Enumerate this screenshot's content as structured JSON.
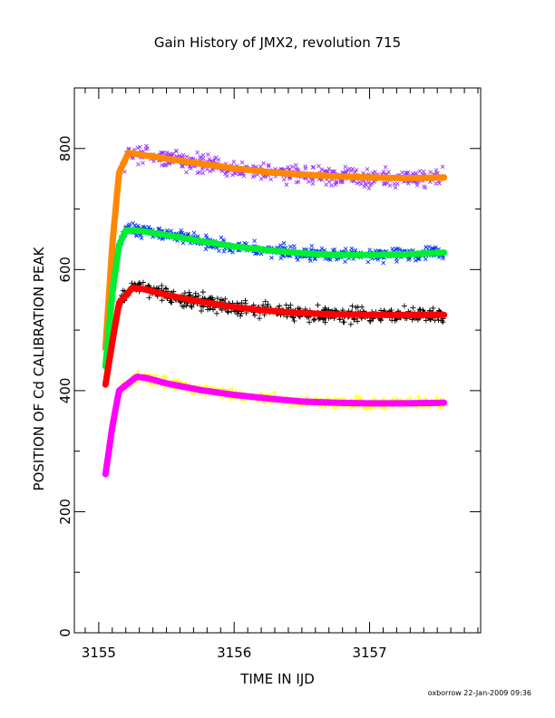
{
  "chart_data": {
    "type": "scatter",
    "title": "Gain History of JMX2, revolution 715",
    "xlabel": "TIME IN IJD",
    "ylabel": "POSITION OF Cd CALIBRATION PEAK",
    "xlim": [
      3154.82,
      3157.82
    ],
    "ylim": [
      0,
      900
    ],
    "x_ticks": [
      3155,
      3156,
      3157
    ],
    "x_tick_labels": [
      "3155",
      "3156",
      "3157"
    ],
    "y_ticks": [
      0,
      200,
      400,
      600,
      800
    ],
    "y_tick_labels": [
      "0",
      "200",
      "400",
      "600",
      "800"
    ],
    "grid": false,
    "footer": "oxborrow 22-Jan-2009 09:36",
    "series": [
      {
        "marker": "x",
        "scatter_color": "#9933ff",
        "fit_color": "#ff8800",
        "start": 470,
        "peak": 793,
        "peak_x": 3155.22,
        "end": 750,
        "noise": 22,
        "x": [
          3155.05,
          3155.1,
          3155.15,
          3155.22,
          3155.3,
          3155.5,
          3155.75,
          3156.0,
          3156.25,
          3156.5,
          3156.75,
          3157.0,
          3157.25,
          3157.55
        ],
        "fit": [
          470,
          640,
          760,
          793,
          790,
          783,
          775,
          767,
          761,
          757,
          754,
          752,
          751,
          752
        ]
      },
      {
        "marker": "x",
        "scatter_color": "#0033ff",
        "fit_color": "#00ee33",
        "start": 440,
        "peak": 665,
        "peak_x": 3155.2,
        "end": 628,
        "noise": 16,
        "x": [
          3155.05,
          3155.1,
          3155.15,
          3155.2,
          3155.3,
          3155.5,
          3155.75,
          3156.0,
          3156.25,
          3156.5,
          3156.75,
          3157.0,
          3157.25,
          3157.55
        ],
        "fit": [
          440,
          560,
          640,
          665,
          664,
          657,
          647,
          638,
          632,
          627,
          624,
          624,
          625,
          628
        ]
      },
      {
        "marker": "+",
        "scatter_color": "#000000",
        "fit_color": "#ff0000",
        "start": 410,
        "peak": 570,
        "peak_x": 3155.25,
        "end": 525,
        "noise": 18,
        "x": [
          3155.05,
          3155.1,
          3155.15,
          3155.25,
          3155.35,
          3155.5,
          3155.75,
          3156.0,
          3156.25,
          3156.5,
          3156.75,
          3157.0,
          3157.25,
          3157.55
        ],
        "fit": [
          410,
          480,
          545,
          570,
          567,
          558,
          547,
          538,
          532,
          528,
          526,
          525,
          525,
          525
        ]
      },
      {
        "marker": "+",
        "scatter_color": "#ffff00",
        "fit_color": "#ff00ff",
        "start": 262,
        "peak": 423,
        "peak_x": 3155.28,
        "end": 380,
        "noise": 12,
        "x": [
          3155.05,
          3155.1,
          3155.15,
          3155.28,
          3155.35,
          3155.5,
          3155.75,
          3156.0,
          3156.25,
          3156.5,
          3156.75,
          3157.0,
          3157.25,
          3157.55
        ],
        "fit": [
          262,
          340,
          400,
          423,
          421,
          412,
          401,
          393,
          387,
          382,
          380,
          379,
          379,
          380
        ]
      }
    ]
  }
}
